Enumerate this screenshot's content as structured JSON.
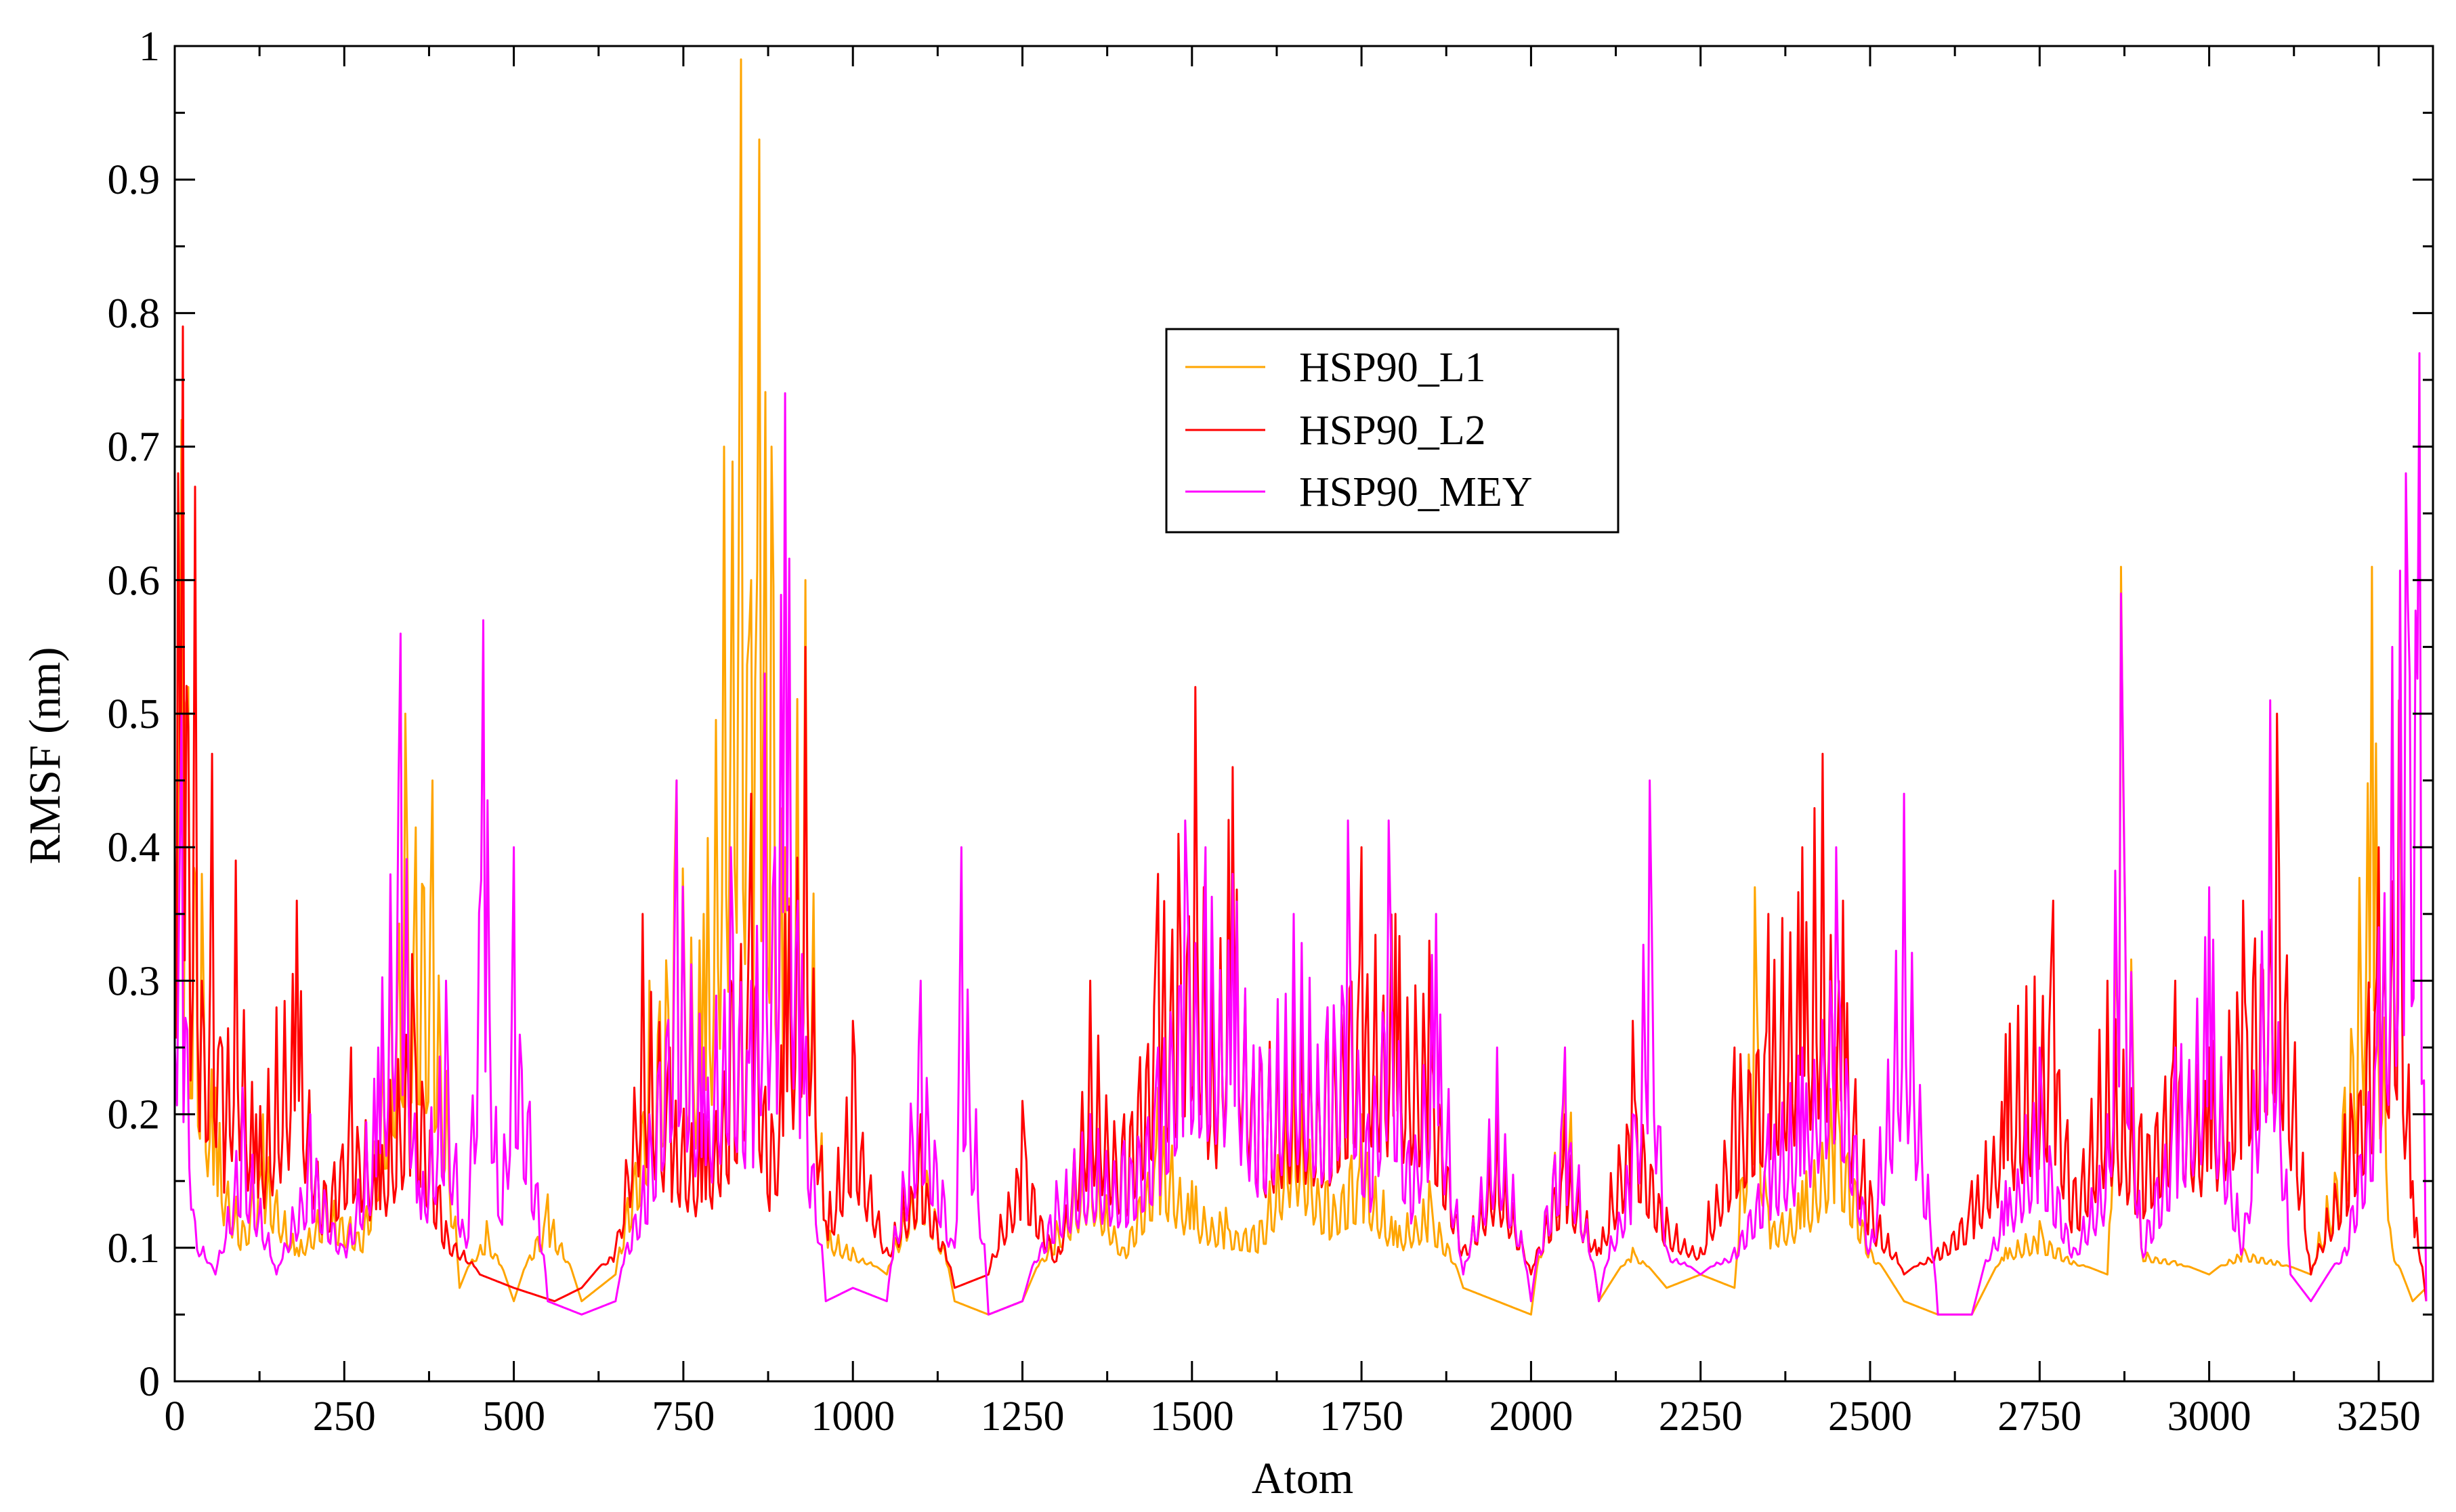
{
  "chart_data": {
    "type": "line",
    "title": "",
    "xlabel": "Atom",
    "ylabel": "RMSF (nm)",
    "xlim": [
      0,
      3330
    ],
    "ylim": [
      0,
      1
    ],
    "x_major_ticks": [
      0,
      250,
      500,
      750,
      1000,
      1250,
      1500,
      1750,
      2000,
      2250,
      2500,
      2750,
      3000,
      3250
    ],
    "x_tick_labels": [
      "0",
      "250",
      "500",
      "750",
      "1000",
      "1250",
      "1500",
      "1750",
      "2000",
      "2250",
      "2500",
      "2750",
      "3000",
      "3250"
    ],
    "y_major_ticks": [
      0,
      0.1,
      0.2,
      0.3,
      0.4,
      0.5,
      0.6,
      0.7,
      0.8,
      0.9,
      1
    ],
    "y_tick_labels": [
      "0",
      "0.1",
      "0.2",
      "0.3",
      "0.4",
      "0.5",
      "0.6",
      "0.7",
      "0.8",
      "0.9",
      "1"
    ],
    "legend_position": "upper-center",
    "series": [
      {
        "name": "HSP90_L1",
        "color": "#FFA500",
        "x": [
          0,
          10,
          20,
          40,
          60,
          100,
          130,
          180,
          220,
          280,
          340,
          380,
          420,
          460,
          500,
          550,
          600,
          650,
          700,
          740,
          780,
          810,
          835,
          850,
          862,
          880,
          900,
          930,
          960,
          1000,
          1050,
          1100,
          1150,
          1200,
          1250,
          1300,
          1350,
          1400,
          1450,
          1500,
          1550,
          1600,
          1650,
          1700,
          1750,
          1800,
          1850,
          1900,
          1950,
          2000,
          2050,
          2100,
          2150,
          2200,
          2250,
          2300,
          2330,
          2350,
          2400,
          2450,
          2500,
          2550,
          2600,
          2650,
          2700,
          2750,
          2800,
          2850,
          2870,
          2900,
          2950,
          3000,
          3050,
          3100,
          3150,
          3200,
          3240,
          3270,
          3300,
          3320
        ],
        "values": [
          0.3,
          0.72,
          0.52,
          0.38,
          0.22,
          0.12,
          0.2,
          0.1,
          0.15,
          0.12,
          0.5,
          0.45,
          0.07,
          0.12,
          0.06,
          0.14,
          0.06,
          0.08,
          0.3,
          0.45,
          0.35,
          0.7,
          0.99,
          0.6,
          0.93,
          0.7,
          0.4,
          0.6,
          0.12,
          0.1,
          0.08,
          0.2,
          0.06,
          0.05,
          0.06,
          0.12,
          0.2,
          0.1,
          0.22,
          0.15,
          0.13,
          0.12,
          0.25,
          0.15,
          0.2,
          0.12,
          0.15,
          0.07,
          0.06,
          0.05,
          0.25,
          0.06,
          0.1,
          0.07,
          0.08,
          0.07,
          0.37,
          0.13,
          0.15,
          0.25,
          0.1,
          0.06,
          0.05,
          0.05,
          0.1,
          0.12,
          0.09,
          0.08,
          0.61,
          0.1,
          0.09,
          0.08,
          0.1,
          0.09,
          0.08,
          0.22,
          0.61,
          0.1,
          0.06,
          0.07
        ]
      },
      {
        "name": "HSP90_L2",
        "color": "#FF0000",
        "x": [
          0,
          5,
          12,
          20,
          30,
          40,
          55,
          70,
          90,
          120,
          150,
          180,
          220,
          260,
          300,
          350,
          400,
          450,
          500,
          560,
          600,
          650,
          690,
          730,
          780,
          820,
          850,
          880,
          900,
          930,
          960,
          1000,
          1050,
          1100,
          1150,
          1200,
          1250,
          1300,
          1350,
          1400,
          1450,
          1480,
          1505,
          1530,
          1560,
          1600,
          1650,
          1700,
          1750,
          1800,
          1850,
          1900,
          1950,
          2000,
          2050,
          2100,
          2150,
          2200,
          2250,
          2300,
          2350,
          2400,
          2430,
          2460,
          2500,
          2550,
          2600,
          2650,
          2700,
          2770,
          2800,
          2850,
          2900,
          2950,
          3000,
          3050,
          3100,
          3150,
          3200,
          3250,
          3280,
          3300,
          3320
        ],
        "values": [
          0.4,
          0.68,
          0.79,
          0.49,
          0.67,
          0.3,
          0.47,
          0.25,
          0.39,
          0.2,
          0.28,
          0.36,
          0.15,
          0.25,
          0.18,
          0.32,
          0.12,
          0.08,
          0.07,
          0.06,
          0.07,
          0.1,
          0.35,
          0.25,
          0.2,
          0.3,
          0.44,
          0.2,
          0.35,
          0.55,
          0.12,
          0.27,
          0.1,
          0.2,
          0.07,
          0.08,
          0.21,
          0.09,
          0.3,
          0.2,
          0.38,
          0.41,
          0.52,
          0.3,
          0.46,
          0.25,
          0.3,
          0.28,
          0.4,
          0.35,
          0.33,
          0.1,
          0.2,
          0.08,
          0.2,
          0.1,
          0.27,
          0.13,
          0.1,
          0.25,
          0.35,
          0.4,
          0.47,
          0.36,
          0.15,
          0.08,
          0.1,
          0.15,
          0.26,
          0.36,
          0.15,
          0.3,
          0.2,
          0.3,
          0.25,
          0.36,
          0.5,
          0.08,
          0.2,
          0.4,
          0.51,
          0.15,
          0.06
        ]
      },
      {
        "name": "HSP90_MEY",
        "color": "#FF00FF",
        "x": [
          0,
          10,
          30,
          60,
          100,
          150,
          200,
          250,
          300,
          333,
          360,
          400,
          430,
          455,
          480,
          500,
          550,
          600,
          650,
          700,
          740,
          780,
          820,
          850,
          870,
          885,
          900,
          925,
          960,
          1000,
          1050,
          1100,
          1150,
          1160,
          1200,
          1250,
          1300,
          1350,
          1400,
          1450,
          1490,
          1520,
          1560,
          1600,
          1650,
          1700,
          1730,
          1760,
          1790,
          1820,
          1860,
          1900,
          1950,
          2000,
          2050,
          2100,
          2150,
          2175,
          2200,
          2250,
          2300,
          2350,
          2400,
          2450,
          2500,
          2550,
          2600,
          2650,
          2700,
          2750,
          2800,
          2850,
          2870,
          2900,
          2950,
          3000,
          3050,
          3090,
          3120,
          3150,
          3200,
          3250,
          3270,
          3290,
          3310,
          3320
        ],
        "values": [
          0.25,
          0.5,
          0.12,
          0.08,
          0.22,
          0.08,
          0.2,
          0.1,
          0.25,
          0.56,
          0.15,
          0.3,
          0.1,
          0.57,
          0.12,
          0.4,
          0.06,
          0.05,
          0.06,
          0.2,
          0.45,
          0.25,
          0.4,
          0.3,
          0.53,
          0.4,
          0.74,
          0.32,
          0.06,
          0.07,
          0.06,
          0.3,
          0.1,
          0.4,
          0.05,
          0.06,
          0.15,
          0.2,
          0.18,
          0.25,
          0.42,
          0.4,
          0.38,
          0.25,
          0.35,
          0.28,
          0.42,
          0.2,
          0.42,
          0.18,
          0.35,
          0.08,
          0.25,
          0.06,
          0.25,
          0.06,
          0.2,
          0.45,
          0.1,
          0.08,
          0.1,
          0.2,
          0.25,
          0.4,
          0.1,
          0.44,
          0.05,
          0.05,
          0.15,
          0.25,
          0.1,
          0.2,
          0.59,
          0.1,
          0.25,
          0.37,
          0.1,
          0.51,
          0.08,
          0.06,
          0.1,
          0.34,
          0.55,
          0.68,
          0.77,
          0.06
        ]
      }
    ]
  }
}
